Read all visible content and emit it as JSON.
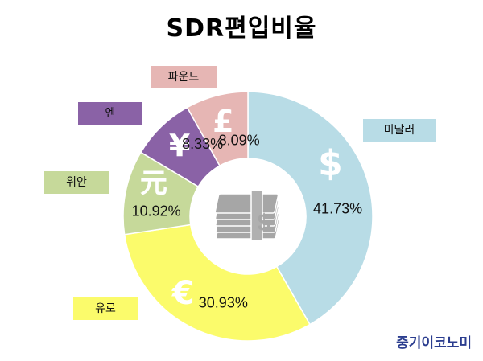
{
  "title": "SDR편입비율",
  "brand": "중기이코노미",
  "colors": {
    "dollar": "#b8dce6",
    "euro": "#fbfb6b",
    "yuan": "#c6d99a",
    "yen": "#8a62a6",
    "pound": "#e6b6b4"
  },
  "chart_data": {
    "type": "pie",
    "variant": "donut",
    "title": "SDR편입비율",
    "slices": [
      {
        "label": "미달러",
        "value": 41.73,
        "display": "41.73%",
        "symbol": "$",
        "color": "#b8dce6"
      },
      {
        "label": "유로",
        "value": 30.93,
        "display": "30.93%",
        "symbol": "€",
        "color": "#fbfb6b"
      },
      {
        "label": "위안",
        "value": 10.92,
        "display": "10.92%",
        "symbol": "元",
        "color": "#c6d99a"
      },
      {
        "label": "엔",
        "value": 8.33,
        "display": "8.33%",
        "symbol": "¥",
        "color": "#8a62a6"
      },
      {
        "label": "파운드",
        "value": 8.09,
        "display": "8.09%",
        "symbol": "£",
        "color": "#e6b6b4"
      }
    ],
    "center_icon": "money-stack-icon"
  }
}
